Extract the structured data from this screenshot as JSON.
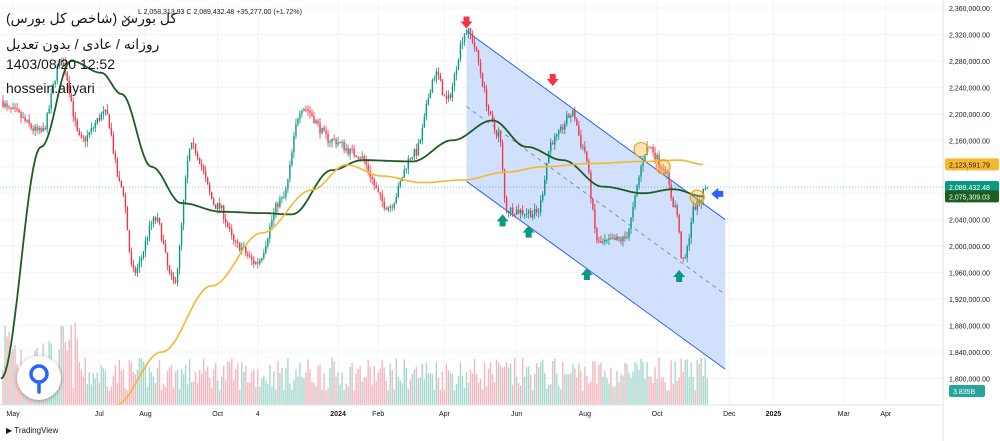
{
  "header": {
    "title": "کل بورس (شاخص کل بورس)",
    "subtitle": "روزانه / عادی / بدون تعدیل",
    "datetime": "1403/08/20 12:52",
    "author": "hossein.aliyari",
    "ohlc_text": "L 2,058,313.93  C 2,089,432.48 +35,277.00 (+1.72%)",
    "close_symbol": "×"
  },
  "footer": {
    "brand": "TradingView"
  },
  "colors": {
    "up": "#089981",
    "down": "#f23645",
    "ma_short": "#1b5e20",
    "ma_long": "#f5b82e",
    "channel_fill": "#c9dafc",
    "channel_line": "#2962ff",
    "arrow_up": "#089981",
    "arrow_down": "#f23645",
    "arrow_current": "#2962ff"
  },
  "chart_data": {
    "type": "candlestick",
    "y_axis": {
      "min": 1760000,
      "max": 2372000,
      "ticks": [
        2360000,
        2320000,
        2280000,
        2240000,
        2200000,
        2160000,
        2120000,
        2080000,
        2040000,
        2000000,
        1960000,
        1920000,
        1880000,
        1840000,
        1800000
      ],
      "tick_labels": [
        "2,360,000.00",
        "2,320,000.00",
        "2,280,000.00",
        "2,240,000.00",
        "2,200,000.00",
        "2,160,000.00",
        "2,120,000.00",
        "2,080,000.00",
        "2,040,000.00",
        "2,000,000.00",
        "1,960,000.00",
        "1,920,000.00",
        "1,880,000.00",
        "1,840,000.00",
        "1,800,000.00"
      ]
    },
    "x_axis": {
      "labels": [
        "May",
        "Jul",
        "Aug",
        "Oct",
        "4",
        "2024",
        "Feb",
        "Apr",
        "Jun",
        "Aug",
        "Oct",
        "Dec",
        "2025",
        "Mar",
        "Apr"
      ],
      "label_bars": [
        6,
        49,
        72,
        108,
        128,
        168,
        188,
        221,
        257,
        291,
        327,
        363,
        385,
        420,
        441
      ],
      "total_bars": 470
    },
    "badges": [
      {
        "label": "2,123,591.79",
        "value": 2123591.79,
        "color": "#f5b82e",
        "text_color": "#131722"
      },
      {
        "label": "2,089,432.48",
        "value": 2089432.48,
        "color": "#089981",
        "text_color": "#ffffff"
      },
      {
        "label": "2,075,309.03",
        "value": 2075309.03,
        "color": "#1b5e20",
        "text_color": "#ffffff"
      }
    ],
    "volume_badge": "3.835B",
    "series": [
      {
        "name": "",
        "kind": "candles",
        "pivots": [
          [
            0,
            2220000
          ],
          [
            4,
            2205000
          ],
          [
            20,
            2172000
          ],
          [
            30,
            2278000
          ],
          [
            40,
            2160000
          ],
          [
            52,
            2200000
          ],
          [
            60,
            2090000
          ],
          [
            66,
            1960000
          ],
          [
            77,
            2040000
          ],
          [
            86,
            1945000
          ],
          [
            95,
            2150000
          ],
          [
            108,
            2060000
          ],
          [
            118,
            2000000
          ],
          [
            127,
            1975000
          ],
          [
            140,
            2070000
          ],
          [
            150,
            2210000
          ],
          [
            165,
            2160000
          ],
          [
            177,
            2140000
          ],
          [
            193,
            2060000
          ],
          [
            206,
            2140000
          ],
          [
            217,
            2260000
          ],
          [
            222,
            2220000
          ],
          [
            232,
            2325000
          ],
          [
            248,
            2170000
          ],
          [
            252,
            2055000
          ],
          [
            267,
            2050000
          ],
          [
            275,
            2160000
          ],
          [
            285,
            2200000
          ],
          [
            290,
            2150000
          ],
          [
            298,
            2004000
          ],
          [
            310,
            2010000
          ],
          [
            323,
            2150000
          ],
          [
            330,
            2120000
          ],
          [
            336,
            2060000
          ],
          [
            340,
            1975000
          ],
          [
            346,
            2060000
          ],
          [
            352,
            2089432
          ]
        ]
      },
      {
        "name": "",
        "kind": "ma_short",
        "pivots": [
          [
            0,
            1800000
          ],
          [
            20,
            2150000
          ],
          [
            35,
            2280000
          ],
          [
            50,
            2262000
          ],
          [
            60,
            2230000
          ],
          [
            75,
            2120000
          ],
          [
            90,
            2065000
          ],
          [
            110,
            2052000
          ],
          [
            130,
            2050000
          ],
          [
            145,
            2048000
          ],
          [
            165,
            2115000
          ],
          [
            180,
            2130000
          ],
          [
            205,
            2128000
          ],
          [
            225,
            2160000
          ],
          [
            245,
            2190000
          ],
          [
            262,
            2150000
          ],
          [
            280,
            2130000
          ],
          [
            300,
            2090000
          ],
          [
            320,
            2080000
          ],
          [
            335,
            2086000
          ],
          [
            350,
            2075309
          ]
        ]
      },
      {
        "name": "",
        "kind": "ma_long",
        "pivots": [
          [
            57,
            1760000
          ],
          [
            80,
            1840000
          ],
          [
            105,
            1940000
          ],
          [
            130,
            2020000
          ],
          [
            155,
            2085000
          ],
          [
            172,
            2123000
          ],
          [
            190,
            2106000
          ],
          [
            210,
            2096000
          ],
          [
            230,
            2100000
          ],
          [
            252,
            2112000
          ],
          [
            270,
            2120000
          ],
          [
            295,
            2125000
          ],
          [
            320,
            2128000
          ],
          [
            338,
            2130000
          ],
          [
            350,
            2123591
          ]
        ]
      }
    ],
    "channel": {
      "upper": [
        [
          232,
          2325000
        ],
        [
          361,
          2040000
        ]
      ],
      "lower": [
        [
          232,
          2098000
        ],
        [
          361,
          1814000
        ]
      ],
      "mid": [
        [
          232,
          2211000
        ],
        [
          361,
          1927000
        ]
      ]
    },
    "arrows": [
      {
        "dir": "down",
        "bar": 232,
        "value": 2335000
      },
      {
        "dir": "down",
        "bar": 275,
        "value": 2248000
      },
      {
        "dir": "up",
        "bar": 250,
        "value": 2042000
      },
      {
        "dir": "up",
        "bar": 263,
        "value": 2025000
      },
      {
        "dir": "up",
        "bar": 292,
        "value": 1961000
      },
      {
        "dir": "up",
        "bar": 338,
        "value": 1958000
      },
      {
        "dir": "left",
        "bar": 356,
        "value": 2079000
      }
    ],
    "circles": [
      {
        "bar": 319,
        "value": 2146000
      },
      {
        "bar": 330,
        "value": 2120000
      },
      {
        "bar": 347,
        "value": 2074000
      }
    ]
  }
}
